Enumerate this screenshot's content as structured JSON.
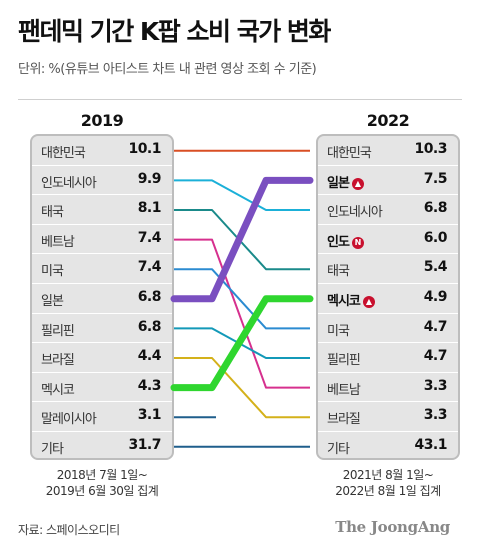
{
  "title": "팬데믹 기간 K팝 소비 국가 변화",
  "unit": "단위: %(유튜브 아티스트 차트 내 관련 영상 조회 수 기준)",
  "source": "자료: 스페이스오디티",
  "logo": "The JoongAng",
  "chart_data": {
    "type": "slope",
    "title": "팬데믹 기간 K팝 소비 국가 변화",
    "left": {
      "year": "2019",
      "period": [
        "2018년 7월 1일~",
        "2019년 6월 30일 집계"
      ],
      "rows": [
        {
          "country": "대한민국",
          "value": 10.1,
          "label": "10.1"
        },
        {
          "country": "인도네시아",
          "value": 9.9,
          "label": "9.9"
        },
        {
          "country": "태국",
          "value": 8.1,
          "label": "8.1"
        },
        {
          "country": "베트남",
          "value": 7.4,
          "label": "7.4"
        },
        {
          "country": "미국",
          "value": 7.4,
          "label": "7.4"
        },
        {
          "country": "일본",
          "value": 6.8,
          "label": "6.8"
        },
        {
          "country": "필리핀",
          "value": 6.8,
          "label": "6.8"
        },
        {
          "country": "브라질",
          "value": 4.4,
          "label": "4.4"
        },
        {
          "country": "멕시코",
          "value": 4.3,
          "label": "4.3"
        },
        {
          "country": "말레이시아",
          "value": 3.1,
          "label": "3.1"
        },
        {
          "country": "기타",
          "value": 31.7,
          "label": "31.7"
        }
      ]
    },
    "right": {
      "year": "2022",
      "period": [
        "2021년 8월 1일~",
        "2022년 8월 1일 집계"
      ],
      "rows": [
        {
          "country": "대한민국",
          "value": 10.3,
          "label": "10.3",
          "badge": "",
          "highlight": false
        },
        {
          "country": "일본",
          "value": 7.5,
          "label": "7.5",
          "badge": "▲",
          "highlight": true
        },
        {
          "country": "인도네시아",
          "value": 6.8,
          "label": "6.8",
          "badge": "",
          "highlight": false
        },
        {
          "country": "인도",
          "value": 6.0,
          "label": "6.0",
          "badge": "N",
          "highlight": true
        },
        {
          "country": "태국",
          "value": 5.4,
          "label": "5.4",
          "badge": "",
          "highlight": false
        },
        {
          "country": "멕시코",
          "value": 4.9,
          "label": "4.9",
          "badge": "▲",
          "highlight": true
        },
        {
          "country": "미국",
          "value": 4.7,
          "label": "4.7",
          "badge": "",
          "highlight": false
        },
        {
          "country": "필리핀",
          "value": 4.7,
          "label": "4.7",
          "badge": "",
          "highlight": false
        },
        {
          "country": "베트남",
          "value": 3.3,
          "label": "3.3",
          "badge": "",
          "highlight": false
        },
        {
          "country": "브라질",
          "value": 3.3,
          "label": "3.3",
          "badge": "",
          "highlight": false
        },
        {
          "country": "기타",
          "value": 43.1,
          "label": "43.1",
          "badge": "",
          "highlight": false
        }
      ]
    },
    "links": [
      {
        "country": "대한민국",
        "from_rank": 1,
        "to_rank": 1,
        "color": "#d94f24",
        "emphasis": false
      },
      {
        "country": "인도네시아",
        "from_rank": 2,
        "to_rank": 3,
        "color": "#1bb0d8",
        "emphasis": false
      },
      {
        "country": "태국",
        "from_rank": 3,
        "to_rank": 5,
        "color": "#1a8a8a",
        "emphasis": false
      },
      {
        "country": "베트남",
        "from_rank": 4,
        "to_rank": 9,
        "color": "#d6308e",
        "emphasis": false
      },
      {
        "country": "미국",
        "from_rank": 5,
        "to_rank": 7,
        "color": "#2b8bd1",
        "emphasis": false
      },
      {
        "country": "일본",
        "from_rank": 6,
        "to_rank": 2,
        "color": "#7a4fc0",
        "emphasis": true
      },
      {
        "country": "필리핀",
        "from_rank": 7,
        "to_rank": 8,
        "color": "#1399b8",
        "emphasis": false
      },
      {
        "country": "브라질",
        "from_rank": 8,
        "to_rank": 10,
        "color": "#d4b11a",
        "emphasis": false
      },
      {
        "country": "멕시코",
        "from_rank": 9,
        "to_rank": 6,
        "color": "#2fd62f",
        "emphasis": true
      },
      {
        "country": "말레이시아",
        "from_rank": 10,
        "to_rank": null,
        "color": "#1f5e8c",
        "emphasis": false
      },
      {
        "country": "기타",
        "from_rank": 11,
        "to_rank": 11,
        "color": "#1f5e8c",
        "emphasis": false
      }
    ]
  }
}
